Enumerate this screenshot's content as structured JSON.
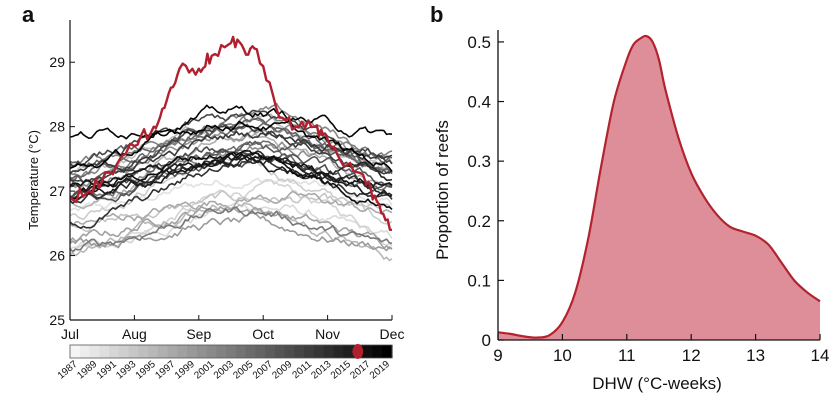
{
  "colors": {
    "highlight": "#b0202f",
    "density_fill": "#dd8e98",
    "density_line": "#b3232f",
    "axis": "#111111"
  },
  "chart_data": [
    {
      "panel": "a",
      "type": "line",
      "title": "",
      "ylabel": "Temperature (°C)",
      "xlabel": "",
      "x_tick_labels": [
        "Jul",
        "Aug",
        "Sep",
        "Oct",
        "Nov",
        "Dec"
      ],
      "ylim": [
        25,
        29.5
      ],
      "y_ticks": [
        25,
        26,
        27,
        28,
        29
      ],
      "highlight_year": 2016,
      "highlight_color": "#b0202f",
      "colorbar_label_years": [
        "1987",
        "1989",
        "1991",
        "1993",
        "1995",
        "1997",
        "1999",
        "2001",
        "2003",
        "2005",
        "2007",
        "2009",
        "2011",
        "2013",
        "2015",
        "2017",
        "2019"
      ],
      "series_count": 33,
      "highlight_series": {
        "name": "2016",
        "x_month": [
          0,
          0.3,
          0.6,
          1.0,
          1.3,
          1.5,
          1.7,
          2.0,
          2.2,
          2.5,
          2.7,
          2.9,
          3.2,
          3.5,
          3.8,
          4.0,
          4.3,
          4.6,
          4.8,
          5.0
        ],
        "values": [
          26.9,
          27.0,
          27.3,
          27.7,
          28.0,
          28.4,
          28.9,
          28.9,
          29.1,
          29.3,
          29.2,
          29.2,
          28.3,
          28.0,
          28.0,
          27.8,
          27.4,
          27.1,
          26.8,
          26.4
        ]
      }
    },
    {
      "panel": "b",
      "type": "area",
      "title": "",
      "xlabel": "DHW (°C-weeks)",
      "ylabel": "Proportion of reefs",
      "xlim": [
        9,
        14
      ],
      "ylim": [
        0,
        0.52
      ],
      "x_ticks": [
        9,
        10,
        11,
        12,
        13,
        14
      ],
      "y_ticks": [
        0,
        0.1,
        0.2,
        0.3,
        0.4,
        0.5
      ],
      "x": [
        9.0,
        9.2,
        9.4,
        9.6,
        9.8,
        10.0,
        10.2,
        10.4,
        10.6,
        10.8,
        11.0,
        11.1,
        11.2,
        11.3,
        11.4,
        11.5,
        11.6,
        11.8,
        12.0,
        12.2,
        12.4,
        12.6,
        12.8,
        13.0,
        13.2,
        13.4,
        13.6,
        13.8,
        14.0
      ],
      "values": [
        0.013,
        0.01,
        0.006,
        0.004,
        0.008,
        0.03,
        0.08,
        0.17,
        0.29,
        0.4,
        0.47,
        0.495,
        0.505,
        0.51,
        0.5,
        0.47,
        0.42,
        0.34,
        0.28,
        0.24,
        0.21,
        0.19,
        0.182,
        0.175,
        0.16,
        0.13,
        0.1,
        0.08,
        0.065
      ]
    }
  ]
}
